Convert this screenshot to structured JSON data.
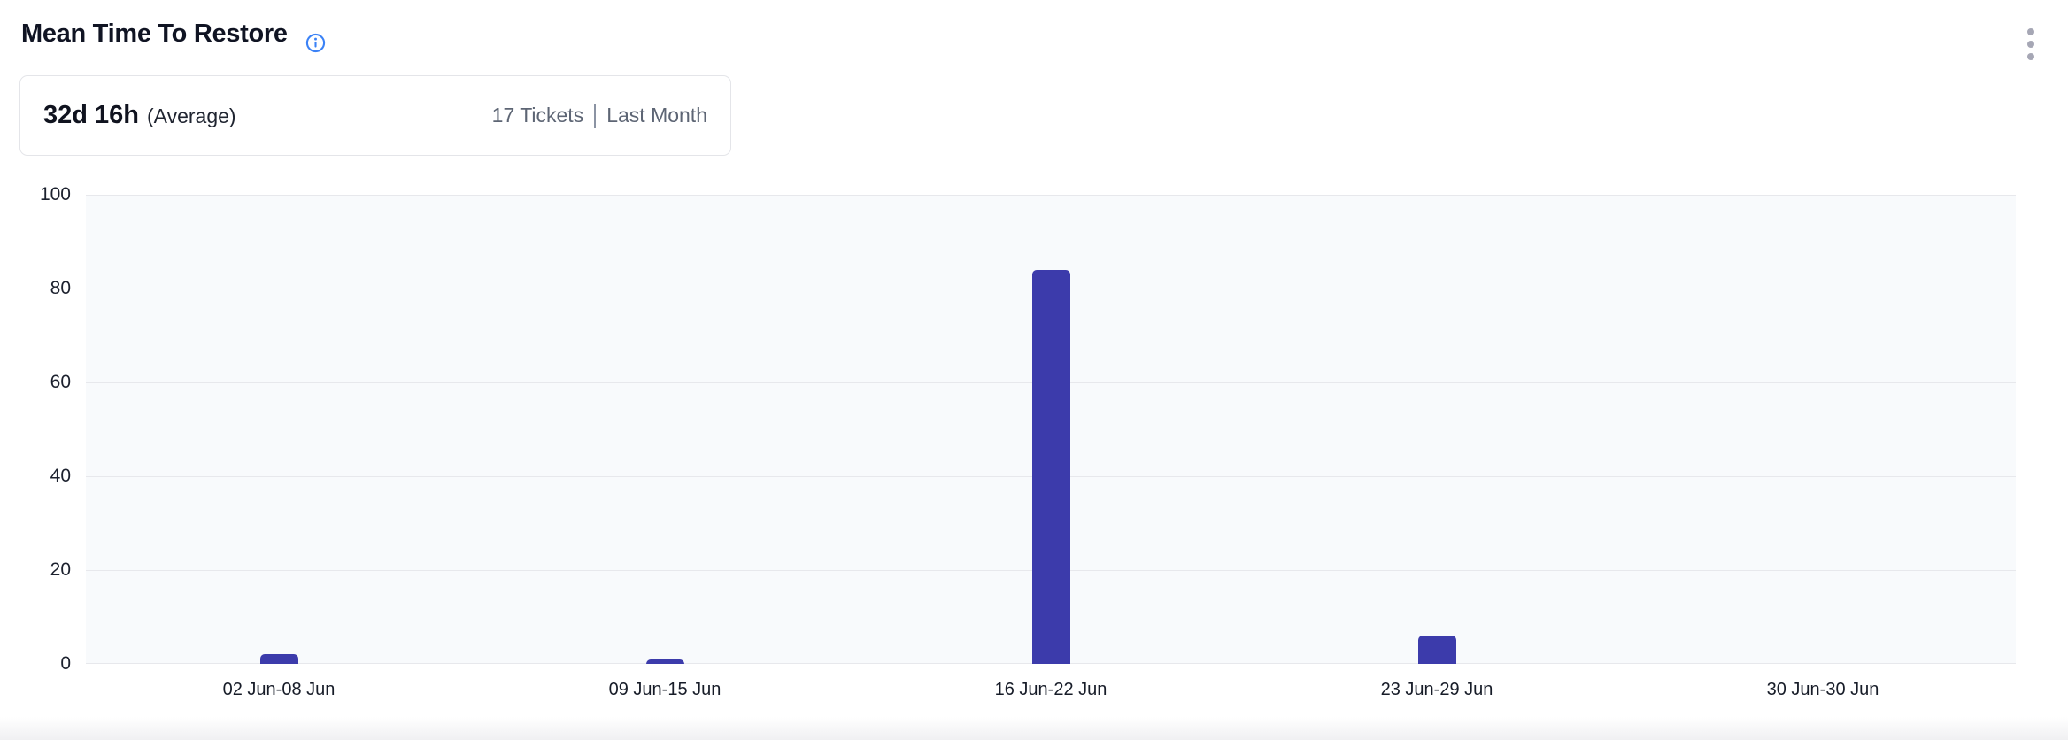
{
  "header": {
    "title": "Mean Time To Restore",
    "info_icon_color": "#3b82f6",
    "menu_dot_color": "#a6a7b5"
  },
  "summary": {
    "value": "32d 16h",
    "qualifier": "(Average)",
    "tickets": "17 Tickets",
    "separator": "|",
    "period": "Last Month"
  },
  "chart_data": {
    "type": "bar",
    "title": "Mean Time To Restore",
    "categories": [
      "02 Jun-08 Jun",
      "09 Jun-15 Jun",
      "16 Jun-22 Jun",
      "23 Jun-29 Jun",
      "30 Jun-30 Jun"
    ],
    "values": [
      2,
      1,
      84,
      6,
      0
    ],
    "xlabel": "",
    "ylabel": "",
    "ylim": [
      0,
      100
    ],
    "yticks": [
      0,
      20,
      40,
      60,
      80,
      100
    ],
    "grid": true,
    "legend": "none",
    "bar_color": "#3c3bab",
    "plot_bg": "#f8fafc",
    "gridline_color": "#e7e8ec"
  }
}
